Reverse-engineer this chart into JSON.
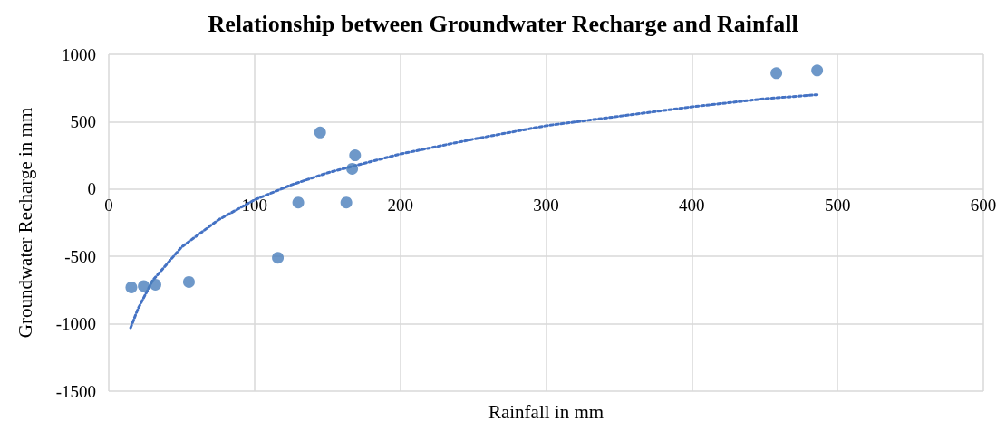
{
  "chart_data": {
    "type": "scatter",
    "title": "Relationship between Groundwater Recharge and Rainfall",
    "xlabel": "Rainfall in mm",
    "ylabel": "Groundwater Recharge in mm",
    "series": [
      {
        "color": "#4a7ebb",
        "marker": "circle",
        "x": [
          15.5,
          24,
          32,
          55,
          116,
          130,
          145,
          163,
          167,
          169,
          458,
          486
        ],
        "values": [
          -730,
          -720,
          -710,
          -690,
          -510,
          -100,
          420,
          -100,
          150,
          250,
          860,
          880
        ]
      },
      {
        "type": "line",
        "color": "#4472c4",
        "marker": "none",
        "line_style": "dotted",
        "x": [
          15,
          20,
          30,
          50,
          75,
          100,
          125,
          150,
          200,
          250,
          300,
          350,
          400,
          450,
          486
        ],
        "values": [
          -1030,
          -890,
          -680,
          -430,
          -230,
          -80,
          30,
          120,
          260,
          370,
          470,
          540,
          610,
          670,
          700
        ]
      }
    ],
    "xlim": [
      0,
      600
    ],
    "xticks": [
      0,
      100,
      200,
      300,
      400,
      500,
      600
    ],
    "ylim": [
      -1500,
      1000
    ],
    "yticks": [
      -1500,
      -1000,
      -500,
      0,
      500,
      1000
    ],
    "grid": true
  }
}
